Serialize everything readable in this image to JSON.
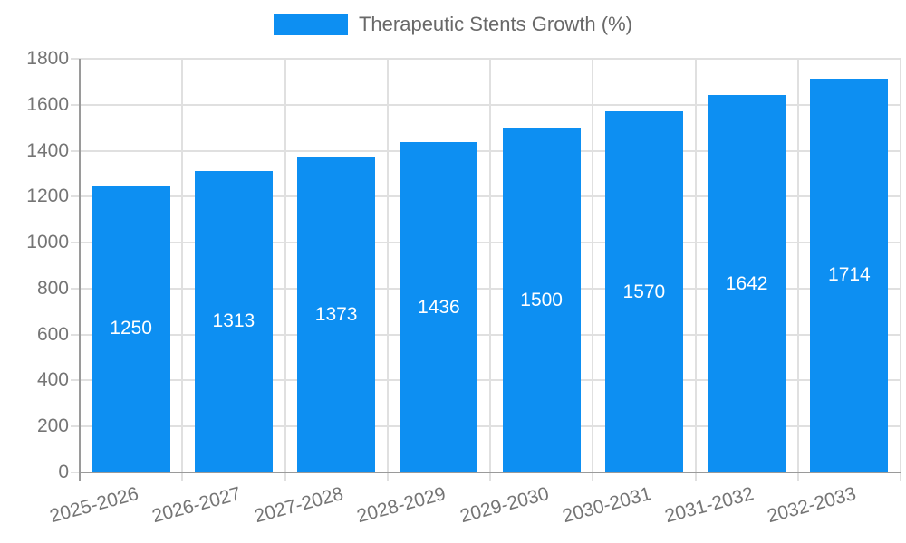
{
  "chart_data": {
    "type": "bar",
    "title": "Therapeutic Stents Growth (%)",
    "legend": {
      "label": "Therapeutic Stents Growth (%)",
      "position": "top"
    },
    "categories": [
      "2025-2026",
      "2026-2027",
      "2027-2028",
      "2028-2029",
      "2029-2030",
      "2030-2031",
      "2031-2032",
      "2032-2033"
    ],
    "series": [
      {
        "name": "Therapeutic Stents Growth (%)",
        "values": [
          1250,
          1313,
          1373,
          1436,
          1500,
          1570,
          1642,
          1714
        ]
      }
    ],
    "bar_value_labels": [
      "1250",
      "1313",
      "1373",
      "1436",
      "1500",
      "1570",
      "1642",
      "1714"
    ],
    "xlabel": "",
    "ylabel": "",
    "ylim": [
      0,
      1800
    ],
    "yticks": [
      0,
      200,
      400,
      600,
      800,
      1000,
      1200,
      1400,
      1600,
      1800
    ],
    "grid": true,
    "x_tick_rotation_deg": -15,
    "value_label_position": "bar-center",
    "colors": {
      "bar": "#0D8FF2",
      "grid": "#e0e0e0",
      "axis": "#9a9a9a",
      "tick_text": "#757575",
      "bar_label_text": "#ffffff",
      "legend_text": "#696969",
      "background": "#ffffff"
    }
  }
}
